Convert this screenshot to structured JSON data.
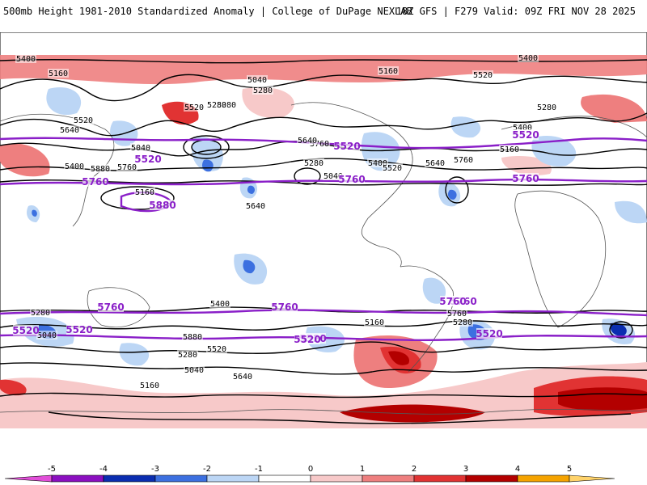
{
  "header": {
    "title": "500mb Height 1981-2010 Standardized Anomaly | College of DuPage NEXLAB",
    "run_info": "18Z GFS | F279 Valid: 09Z FRI NOV 28 2025"
  },
  "map": {
    "contour_labels_black": [
      "5400",
      "5160",
      "5040",
      "5280",
      "5520",
      "5640",
      "5760",
      "5880",
      "5400",
      "5280",
      "5160",
      "5040",
      "5280",
      "5520",
      "5640",
      "5760",
      "5280",
      "5400",
      "5520",
      "5640",
      "5160",
      "5040",
      "5400",
      "5760",
      "5640",
      "5520",
      "5400",
      "5280",
      "5160",
      "5040",
      "5280",
      "5880",
      "5640",
      "5520",
      "5280",
      "5400",
      "5760",
      "5160",
      "5280",
      "5040",
      "5160"
    ],
    "contour_labels_purple": [
      "5520",
      "5760",
      "5880",
      "5520",
      "5760",
      "5520",
      "5760",
      "5760",
      "5520",
      "5760",
      "5760",
      "5520",
      "5520",
      "5520",
      "5760",
      "5520"
    ]
  },
  "colorbar": {
    "ticks": [
      "-5",
      "-4",
      "-3",
      "-2",
      "-1",
      "0",
      "1",
      "2",
      "3",
      "4",
      "5"
    ],
    "colors": [
      "#e14fd8",
      "#8b0fc0",
      "#0a2db0",
      "#3c70e0",
      "#bcd6f5",
      "#ffffff",
      "#f7c9c9",
      "#ee7f7f",
      "#e13333",
      "#b30000",
      "#f5a300",
      "#ffd36b"
    ]
  }
}
